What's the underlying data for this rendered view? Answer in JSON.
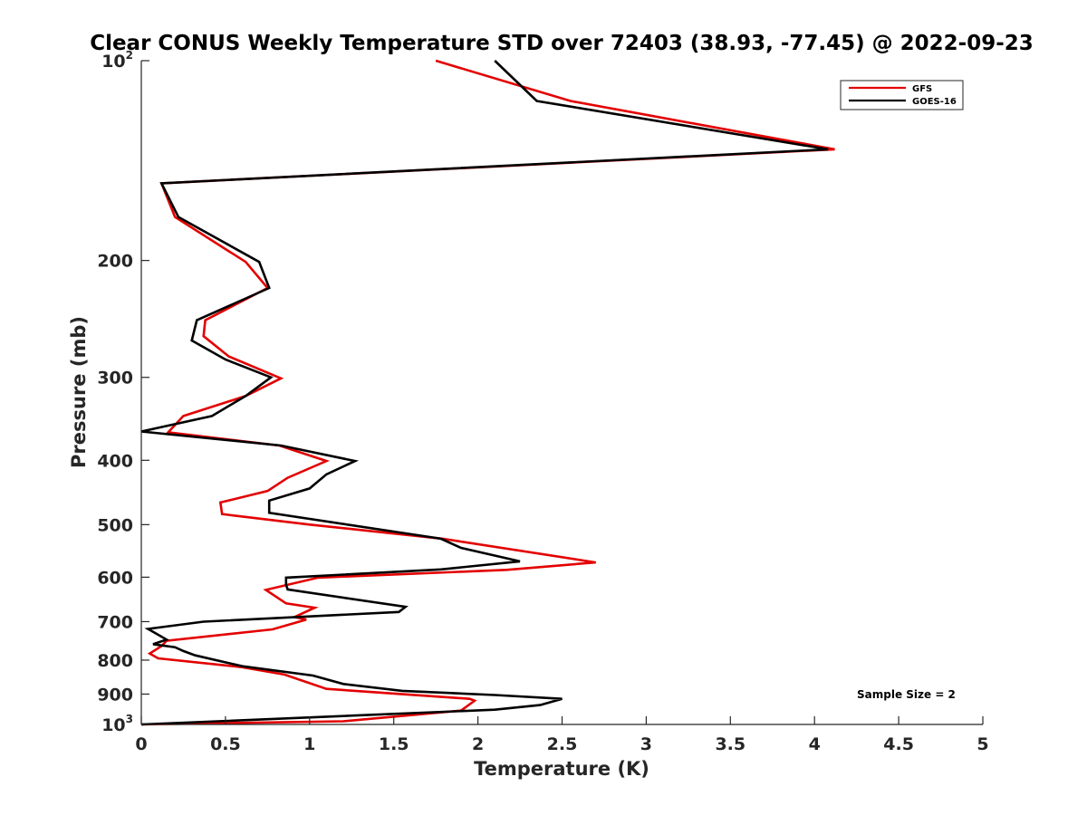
{
  "chart_data": {
    "type": "line",
    "title": "Clear CONUS Weekly Temperature STD over 72403 (38.93, -77.45) @ 2022-09-23",
    "xlabel": "Temperature (K)",
    "ylabel": "Pressure (mb)",
    "xlim": [
      0,
      5
    ],
    "ylim": [
      100,
      1000
    ],
    "y_scale": "log",
    "y_reversed": true,
    "x_ticks": [
      "0",
      "0.5",
      "1",
      "1.5",
      "2",
      "2.5",
      "3",
      "3.5",
      "4",
      "4.5",
      "5"
    ],
    "y_ticks": [
      {
        "value": 100,
        "base": "10",
        "exp": "2"
      },
      {
        "value": 200,
        "label": "200"
      },
      {
        "value": 300,
        "label": "300"
      },
      {
        "value": 400,
        "label": "400"
      },
      {
        "value": 500,
        "label": "500"
      },
      {
        "value": 600,
        "label": "600"
      },
      {
        "value": 700,
        "label": "700"
      },
      {
        "value": 800,
        "label": "800"
      },
      {
        "value": 900,
        "label": "900"
      },
      {
        "value": 1000,
        "base": "10",
        "exp": "3"
      }
    ],
    "grid": false,
    "legend_position": "top-right",
    "annotation": "Sample Size = 2",
    "series": [
      {
        "name": "GFS",
        "color": "#e30000",
        "points": [
          [
            1.75,
            100
          ],
          [
            2.55,
            115
          ],
          [
            4.12,
            136
          ],
          [
            0.12,
            153
          ],
          [
            0.2,
            172
          ],
          [
            0.62,
            201
          ],
          [
            0.75,
            220
          ],
          [
            0.38,
            246
          ],
          [
            0.37,
            260
          ],
          [
            0.52,
            279
          ],
          [
            0.83,
            301
          ],
          [
            0.62,
            320
          ],
          [
            0.25,
            343
          ],
          [
            0.16,
            363
          ],
          [
            0.82,
            380
          ],
          [
            1.1,
            401
          ],
          [
            0.87,
            425
          ],
          [
            0.75,
            445
          ],
          [
            0.47,
            463
          ],
          [
            0.48,
            482
          ],
          [
            1.0,
            500
          ],
          [
            1.79,
            525
          ],
          [
            2.7,
            570
          ],
          [
            2.17,
            585
          ],
          [
            1.05,
            601
          ],
          [
            0.74,
            627
          ],
          [
            0.86,
            657
          ],
          [
            1.03,
            667
          ],
          [
            0.91,
            689
          ],
          [
            0.98,
            695
          ],
          [
            0.78,
            719
          ],
          [
            0.15,
            748
          ],
          [
            0.12,
            762
          ],
          [
            0.05,
            782
          ],
          [
            0.1,
            795
          ],
          [
            0.6,
            820
          ],
          [
            0.85,
            841
          ],
          [
            1.1,
            884
          ],
          [
            1.95,
            915
          ],
          [
            1.98,
            921
          ],
          [
            1.9,
            953
          ],
          [
            1.2,
            989
          ],
          [
            0.0,
            1000
          ]
        ]
      },
      {
        "name": "GOES-16",
        "color": "#000000",
        "points": [
          [
            2.1,
            100
          ],
          [
            2.35,
            115
          ],
          [
            4.08,
            136
          ],
          [
            0.12,
            153
          ],
          [
            0.22,
            172
          ],
          [
            0.7,
            201
          ],
          [
            0.76,
            220
          ],
          [
            0.33,
            246
          ],
          [
            0.3,
            264
          ],
          [
            0.5,
            282
          ],
          [
            0.77,
            300
          ],
          [
            0.62,
            320
          ],
          [
            0.42,
            343
          ],
          [
            0.0,
            362
          ],
          [
            0.83,
            380
          ],
          [
            1.27,
            401
          ],
          [
            1.1,
            420
          ],
          [
            1.0,
            441
          ],
          [
            0.76,
            460
          ],
          [
            0.76,
            480
          ],
          [
            1.78,
            525
          ],
          [
            1.9,
            542
          ],
          [
            2.25,
            568
          ],
          [
            1.78,
            584
          ],
          [
            0.86,
            601
          ],
          [
            0.86,
            616
          ],
          [
            0.87,
            626
          ],
          [
            1.57,
            665
          ],
          [
            1.53,
            677
          ],
          [
            0.37,
            700
          ],
          [
            0.04,
            718
          ],
          [
            0.15,
            745
          ],
          [
            0.07,
            757
          ],
          [
            0.2,
            765
          ],
          [
            0.25,
            775
          ],
          [
            0.32,
            787
          ],
          [
            0.6,
            817
          ],
          [
            1.02,
            844
          ],
          [
            1.2,
            869
          ],
          [
            1.55,
            890
          ],
          [
            2.1,
            903
          ],
          [
            2.5,
            915
          ],
          [
            2.37,
            935
          ],
          [
            2.1,
            950
          ],
          [
            0.0,
            1000
          ]
        ]
      }
    ]
  }
}
